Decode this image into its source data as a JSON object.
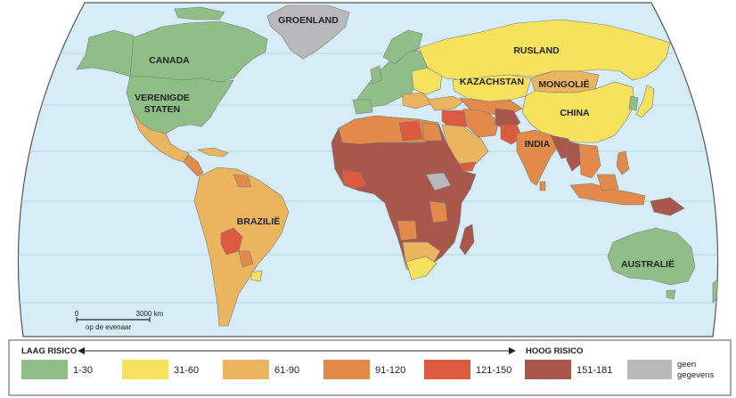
{
  "colors": {
    "ocean": "#d6ecf7",
    "risk_1_30": "#8fbf86",
    "risk_31_60": "#f7e25e",
    "risk_61_90": "#ebb45e",
    "risk_91_120": "#e38a4a",
    "risk_121_150": "#dc5a3f",
    "risk_151_181": "#a8574a",
    "no_data": "#b9b9bb",
    "border": "#7a7a7a"
  },
  "labels": {
    "greenland": "GROENLAND",
    "canada": "CANADA",
    "usa_line1": "VERENIGDE",
    "usa_line2": "STATEN",
    "russia": "RUSLAND",
    "kazakhstan": "KAZACHSTAN",
    "mongolia": "MONGOLIË",
    "china": "CHINA",
    "india": "INDIA",
    "brazil": "BRAZILIË",
    "australia": "AUSTRALIË"
  },
  "scale": {
    "zero": "0",
    "distance": "3000 km",
    "note": "op de evenaar"
  },
  "legend": {
    "low_label": "LAAG RISICO",
    "high_label": "HOOG RISICO",
    "items": [
      {
        "label": "1-30",
        "color_key": "risk_1_30"
      },
      {
        "label": "31-60",
        "color_key": "risk_31_60"
      },
      {
        "label": "61-90",
        "color_key": "risk_61_90"
      },
      {
        "label": "91-120",
        "color_key": "risk_91_120"
      },
      {
        "label": "121-150",
        "color_key": "risk_121_150"
      },
      {
        "label": "151-181",
        "color_key": "risk_151_181"
      }
    ],
    "no_data_line1": "geen",
    "no_data_line2": "gegevens"
  }
}
